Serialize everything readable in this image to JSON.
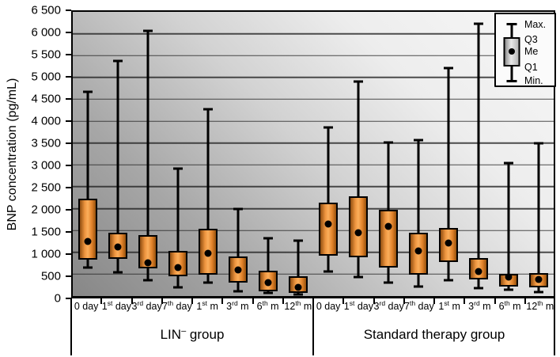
{
  "chart_data": {
    "type": "boxplot",
    "title": "",
    "xlabel": "",
    "ylabel": "BNP concentration (pg/mL)",
    "ylim": [
      0,
      6500
    ],
    "ytick_interval": 500,
    "grid": true,
    "legend_position": "top-right",
    "yticks": [
      {
        "v": 0,
        "l": "0"
      },
      {
        "v": 500,
        "l": "500"
      },
      {
        "v": 1000,
        "l": "1 000"
      },
      {
        "v": 1500,
        "l": "1 500"
      },
      {
        "v": 2000,
        "l": "2 000"
      },
      {
        "v": 2500,
        "l": "2 500"
      },
      {
        "v": 3000,
        "l": "3 000"
      },
      {
        "v": 3500,
        "l": "3 500"
      },
      {
        "v": 4000,
        "l": "4 000"
      },
      {
        "v": 4500,
        "l": "4 500"
      },
      {
        "v": 5000,
        "l": "5 000"
      },
      {
        "v": 5500,
        "l": "5 500"
      },
      {
        "v": 6000,
        "l": "6 000"
      },
      {
        "v": 6500,
        "l": "6 500"
      }
    ],
    "categories": [
      {
        "b": "0",
        "s": "",
        "t": " day"
      },
      {
        "b": "1",
        "s": "st",
        "t": " day"
      },
      {
        "b": "3",
        "s": "rd",
        "t": " day"
      },
      {
        "b": "7",
        "s": "th",
        "t": " day"
      },
      {
        "b": "1",
        "s": "st",
        "t": " m"
      },
      {
        "b": "3",
        "s": "rd",
        "t": " m"
      },
      {
        "b": "6",
        "s": "th",
        "t": " m"
      },
      {
        "b": "12",
        "s": "th",
        "t": " m"
      }
    ],
    "groups": [
      {
        "label": {
          "b": "LIN",
          "s": "–",
          "t": " group"
        },
        "boxes": [
          {
            "min": 650,
            "q1": 830,
            "me": 1250,
            "q3": 2230,
            "max": 4670
          },
          {
            "min": 550,
            "q1": 860,
            "me": 1120,
            "q3": 1450,
            "max": 5370
          },
          {
            "min": 360,
            "q1": 640,
            "me": 760,
            "q3": 1390,
            "max": 6060
          },
          {
            "min": 200,
            "q1": 460,
            "me": 650,
            "q3": 1030,
            "max": 2920
          },
          {
            "min": 300,
            "q1": 490,
            "me": 980,
            "q3": 1540,
            "max": 4280
          },
          {
            "min": 115,
            "q1": 300,
            "me": 600,
            "q3": 910,
            "max": 1990
          },
          {
            "min": 70,
            "q1": 110,
            "me": 300,
            "q3": 580,
            "max": 1330
          },
          {
            "min": 40,
            "q1": 80,
            "me": 200,
            "q3": 450,
            "max": 1260
          }
        ]
      },
      {
        "label": {
          "b": "Standard therapy group",
          "s": "",
          "t": ""
        },
        "boxes": [
          {
            "min": 555,
            "q1": 920,
            "me": 1650,
            "q3": 2130,
            "max": 3860
          },
          {
            "min": 435,
            "q1": 880,
            "me": 1440,
            "q3": 2290,
            "max": 4910
          },
          {
            "min": 305,
            "q1": 660,
            "me": 1600,
            "q3": 1970,
            "max": 3510
          },
          {
            "min": 215,
            "q1": 495,
            "me": 1040,
            "q3": 1450,
            "max": 3570
          },
          {
            "min": 365,
            "q1": 780,
            "me": 1210,
            "q3": 1560,
            "max": 5220
          },
          {
            "min": 175,
            "q1": 375,
            "me": 570,
            "q3": 870,
            "max": 6220
          },
          {
            "min": 140,
            "q1": 215,
            "me": 435,
            "q3": 515,
            "max": 3040
          },
          {
            "min": 85,
            "q1": 200,
            "me": 375,
            "q3": 530,
            "max": 3490
          }
        ]
      }
    ],
    "legend": {
      "max": "Max.",
      "q3": "Q3",
      "me": "Me",
      "q1": "Q1",
      "min": "Min."
    },
    "colors": {
      "box_fill": "#f59e47",
      "box_fill_edge": "#8f4d10",
      "outline": "#000000",
      "bg_light": "#f7f7f7",
      "bg_dark": "#878787"
    }
  }
}
